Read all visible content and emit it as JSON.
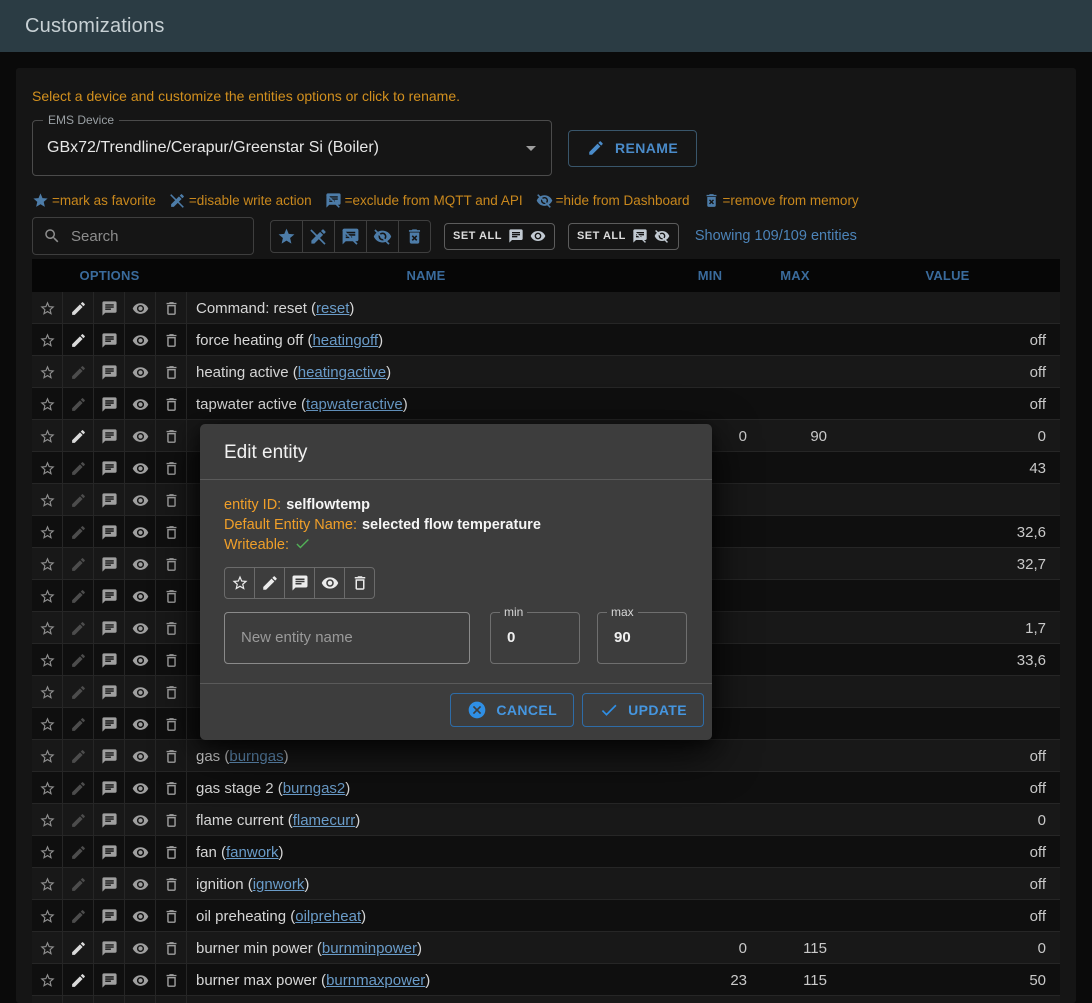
{
  "appbar": {
    "title": "Customizations"
  },
  "hint": "Select a device and customize the entities options or click to rename.",
  "device_select": {
    "label": "EMS Device",
    "value": "GBx72/Trendline/Cerapur/Greenstar Si (Boiler)"
  },
  "rename_button": "RENAME",
  "legend": [
    {
      "name": "favorite",
      "icon": "star-filled",
      "text": "=mark as favorite"
    },
    {
      "name": "write",
      "icon": "edit-off",
      "text": "=disable write action"
    },
    {
      "name": "mqtt",
      "icon": "chat-off",
      "text": "=exclude from MQTT and API"
    },
    {
      "name": "visibility",
      "icon": "eye-off",
      "text": "=hide from Dashboard"
    },
    {
      "name": "memory",
      "icon": "trash-x",
      "text": "=remove from memory"
    }
  ],
  "toolbar": {
    "search_placeholder": "Search",
    "toggles": [
      {
        "name": "favorite",
        "icon": "star-filled"
      },
      {
        "name": "write",
        "icon": "edit-off"
      },
      {
        "name": "mqtt",
        "icon": "chat-off"
      },
      {
        "name": "visibility",
        "icon": "eye-off"
      },
      {
        "name": "memory",
        "icon": "trash-x"
      }
    ],
    "set_all_visible": {
      "label": "SET ALL",
      "icons": [
        "chat",
        "eye"
      ]
    },
    "set_all_hidden": {
      "label": "SET ALL",
      "icons": [
        "chat-off",
        "eye-off"
      ]
    },
    "showing": "Showing 109/109 entities"
  },
  "table": {
    "headers": {
      "options": "OPTIONS",
      "name": "NAME",
      "min": "MIN",
      "max": "MAX",
      "value": "VALUE"
    },
    "rows": [
      {
        "prefix": "Command: reset (",
        "link": "reset",
        "suffix": ")",
        "writable": true,
        "min": "",
        "max": "",
        "value": ""
      },
      {
        "prefix": "force heating off (",
        "link": "heatingoff",
        "suffix": ")",
        "writable": true,
        "min": "",
        "max": "",
        "value": "off"
      },
      {
        "prefix": "heating active (",
        "link": "heatingactive",
        "suffix": ")",
        "writable": false,
        "min": "",
        "max": "",
        "value": "off"
      },
      {
        "prefix": "tapwater active (",
        "link": "tapwateractive",
        "suffix": ")",
        "writable": false,
        "min": "",
        "max": "",
        "value": "off"
      },
      {
        "prefix": "",
        "link": "",
        "suffix": "",
        "writable": true,
        "min": "0",
        "max": "90",
        "value": "0"
      },
      {
        "prefix": "",
        "link": "",
        "suffix": "",
        "writable": false,
        "min": "",
        "max": "",
        "value": "43"
      },
      {
        "prefix": "",
        "link": "",
        "suffix": "",
        "writable": false,
        "min": "",
        "max": "",
        "value": ""
      },
      {
        "prefix": "",
        "link": "",
        "suffix": "",
        "writable": false,
        "min": "",
        "max": "",
        "value": "32,6"
      },
      {
        "prefix": "",
        "link": "",
        "suffix": "",
        "writable": false,
        "min": "",
        "max": "",
        "value": "32,7"
      },
      {
        "prefix": "",
        "link": "",
        "suffix": "",
        "writable": false,
        "min": "",
        "max": "",
        "value": ""
      },
      {
        "prefix": "",
        "link": "",
        "suffix": "",
        "writable": false,
        "min": "",
        "max": "",
        "value": "1,7"
      },
      {
        "prefix": "",
        "link": "",
        "suffix": "",
        "writable": false,
        "min": "",
        "max": "",
        "value": "33,6"
      },
      {
        "prefix": "",
        "link": "",
        "suffix": "",
        "writable": false,
        "min": "",
        "max": "",
        "value": ""
      },
      {
        "prefix": "",
        "link": "",
        "suffix": "",
        "writable": false,
        "min": "",
        "max": "",
        "value": ""
      },
      {
        "prefix": "gas (",
        "link": "burngas",
        "suffix": ")",
        "writable": false,
        "min": "",
        "max": "",
        "value": "off"
      },
      {
        "prefix": "gas stage 2 (",
        "link": "burngas2",
        "suffix": ")",
        "writable": false,
        "min": "",
        "max": "",
        "value": "off"
      },
      {
        "prefix": "flame current (",
        "link": "flamecurr",
        "suffix": ")",
        "writable": false,
        "min": "",
        "max": "",
        "value": "0"
      },
      {
        "prefix": "fan (",
        "link": "fanwork",
        "suffix": ")",
        "writable": false,
        "min": "",
        "max": "",
        "value": "off"
      },
      {
        "prefix": "ignition (",
        "link": "ignwork",
        "suffix": ")",
        "writable": false,
        "min": "",
        "max": "",
        "value": "off"
      },
      {
        "prefix": "oil preheating (",
        "link": "oilpreheat",
        "suffix": ")",
        "writable": false,
        "min": "",
        "max": "",
        "value": "off"
      },
      {
        "prefix": "burner min power (",
        "link": "burnminpower",
        "suffix": ")",
        "writable": true,
        "min": "0",
        "max": "115",
        "value": "0"
      },
      {
        "prefix": "burner max power (",
        "link": "burnmaxpower",
        "suffix": ")",
        "writable": true,
        "min": "23",
        "max": "115",
        "value": "50"
      },
      {
        "prefix": "",
        "link": "",
        "suffix": "",
        "writable": true,
        "min": "",
        "max": "",
        "value": ""
      }
    ]
  },
  "modal": {
    "title": "Edit entity",
    "entity_id_label": "entity ID:",
    "entity_id": "selflowtemp",
    "default_name_label": "Default Entity Name:",
    "default_name": "selected flow temperature",
    "writeable_label": "Writeable:",
    "toggles": [
      {
        "name": "favorite",
        "icon": "star-outline"
      },
      {
        "name": "write",
        "icon": "edit"
      },
      {
        "name": "mqtt",
        "icon": "chat"
      },
      {
        "name": "visibility",
        "icon": "eye"
      },
      {
        "name": "memory",
        "icon": "trash"
      }
    ],
    "name_input_placeholder": "New entity name",
    "min_label": "min",
    "min_value": "0",
    "max_label": "max",
    "max_value": "90",
    "cancel_label": "CANCEL",
    "update_label": "UPDATE"
  },
  "colors": {
    "appbar": "#2b3c44",
    "accent_orange": "#d2901e",
    "modal_orange": "#f09f29",
    "link_blue": "#6a9cc9",
    "icon_blue": "#4d7ca8",
    "primary_blue": "#4596e0",
    "header_blue": "#3a6b9c",
    "green": "#52b157"
  }
}
